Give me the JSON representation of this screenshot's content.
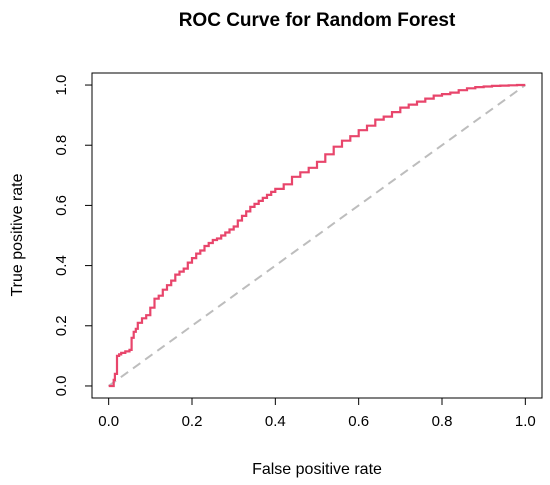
{
  "chart_data": {
    "type": "line",
    "title": "ROC Curve for Random Forest",
    "xlabel": "False positive rate",
    "ylabel": "True positive rate",
    "xlim": [
      -0.04,
      1.04
    ],
    "ylim": [
      -0.04,
      1.04
    ],
    "xticks": [
      "0.0",
      "0.2",
      "0.4",
      "0.6",
      "0.8",
      "1.0"
    ],
    "yticks": [
      "0.0",
      "0.2",
      "0.4",
      "0.6",
      "0.8",
      "1.0"
    ],
    "grid": false,
    "legend": "none",
    "series": [
      {
        "color": "#e8456b",
        "x": [
          0.0,
          0.006,
          0.012,
          0.015,
          0.018,
          0.02,
          0.025,
          0.03,
          0.035,
          0.04,
          0.045,
          0.05,
          0.055,
          0.06,
          0.065,
          0.07,
          0.08,
          0.09,
          0.1,
          0.11,
          0.12,
          0.13,
          0.14,
          0.15,
          0.16,
          0.17,
          0.18,
          0.19,
          0.2,
          0.21,
          0.22,
          0.23,
          0.24,
          0.25,
          0.26,
          0.27,
          0.28,
          0.29,
          0.3,
          0.31,
          0.32,
          0.33,
          0.34,
          0.35,
          0.36,
          0.37,
          0.38,
          0.39,
          0.4,
          0.42,
          0.44,
          0.46,
          0.48,
          0.5,
          0.52,
          0.54,
          0.56,
          0.58,
          0.6,
          0.62,
          0.64,
          0.66,
          0.68,
          0.7,
          0.72,
          0.74,
          0.76,
          0.78,
          0.8,
          0.82,
          0.84,
          0.86,
          0.88,
          0.9,
          0.92,
          0.94,
          0.96,
          0.98,
          1.0
        ],
        "y": [
          0.0,
          0.0,
          0.02,
          0.04,
          0.04,
          0.1,
          0.105,
          0.11,
          0.11,
          0.115,
          0.115,
          0.12,
          0.16,
          0.18,
          0.19,
          0.21,
          0.225,
          0.235,
          0.26,
          0.29,
          0.3,
          0.32,
          0.335,
          0.35,
          0.37,
          0.38,
          0.39,
          0.41,
          0.425,
          0.44,
          0.45,
          0.465,
          0.475,
          0.485,
          0.49,
          0.5,
          0.51,
          0.52,
          0.53,
          0.55,
          0.565,
          0.58,
          0.595,
          0.605,
          0.615,
          0.625,
          0.635,
          0.645,
          0.655,
          0.67,
          0.695,
          0.71,
          0.725,
          0.745,
          0.77,
          0.795,
          0.815,
          0.83,
          0.85,
          0.865,
          0.885,
          0.895,
          0.91,
          0.925,
          0.935,
          0.945,
          0.955,
          0.965,
          0.97,
          0.975,
          0.983,
          0.989,
          0.993,
          0.995,
          0.997,
          0.998,
          0.999,
          1.0,
          1.0
        ]
      }
    ],
    "reference_line": {
      "x": [
        0.0,
        1.0
      ],
      "y": [
        0.0,
        1.0
      ],
      "color": "#bdbdbd",
      "style": "dashed"
    }
  }
}
